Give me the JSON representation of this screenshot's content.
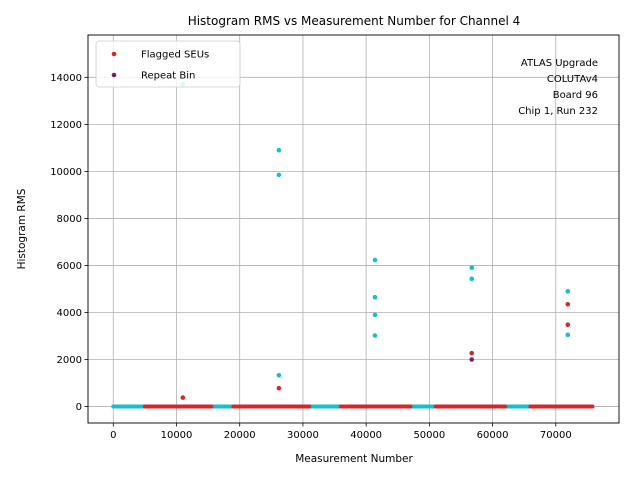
{
  "chart_data": {
    "type": "scatter",
    "title": "Histogram RMS vs Measurement Number for Channel 4",
    "xlabel": "Measurement Number",
    "ylabel": "Histogram RMS",
    "xlim": [
      -4000,
      80000
    ],
    "ylim": [
      -700,
      15800
    ],
    "xticks": [
      0,
      10000,
      20000,
      30000,
      40000,
      50000,
      60000,
      70000
    ],
    "yticks": [
      0,
      2000,
      4000,
      6000,
      8000,
      10000,
      12000,
      14000
    ],
    "grid": true,
    "legend_position": "top-left",
    "annotation_lines": [
      "ATLAS Upgrade",
      "COLUTAv4",
      "Board 96",
      "Chip 1, Run 232"
    ],
    "series": [
      {
        "name": "",
        "color": "#17becf",
        "baseline_segments": [
          [
            0,
            5000
          ],
          [
            15500,
            19000
          ],
          [
            31000,
            36000
          ],
          [
            47000,
            51000
          ],
          [
            62000,
            66000
          ]
        ],
        "points": [
          {
            "x": 11000,
            "y": 13700
          },
          {
            "x": 26200,
            "y": 10900
          },
          {
            "x": 26200,
            "y": 9850
          },
          {
            "x": 26200,
            "y": 1330
          },
          {
            "x": 41400,
            "y": 6230
          },
          {
            "x": 41400,
            "y": 4650
          },
          {
            "x": 41400,
            "y": 3900
          },
          {
            "x": 41400,
            "y": 3020
          },
          {
            "x": 56700,
            "y": 5900
          },
          {
            "x": 56700,
            "y": 5430
          },
          {
            "x": 71900,
            "y": 4900
          },
          {
            "x": 71900,
            "y": 3050
          }
        ]
      },
      {
        "name": "Flagged SEUs",
        "color": "#d62728",
        "baseline_segments": [
          [
            5000,
            15500
          ],
          [
            19000,
            31000
          ],
          [
            36000,
            47000
          ],
          [
            51000,
            62000
          ],
          [
            66000,
            75800
          ]
        ],
        "points": [
          {
            "x": 11000,
            "y": 380
          },
          {
            "x": 26200,
            "y": 780
          },
          {
            "x": 56700,
            "y": 2270
          },
          {
            "x": 71900,
            "y": 4350
          },
          {
            "x": 71900,
            "y": 3480
          }
        ]
      },
      {
        "name": "Repeat Bin",
        "color": "#7b1c6b",
        "baseline_segments": [],
        "points": [
          {
            "x": 56700,
            "y": 2000
          }
        ]
      }
    ]
  }
}
